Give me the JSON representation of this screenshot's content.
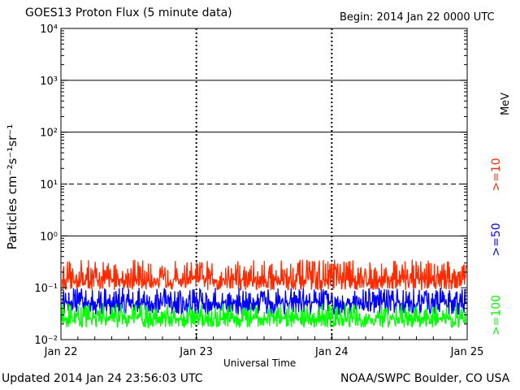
{
  "header": {
    "title": "GOES13 Proton Flux (5 minute data)",
    "begin": "Begin: 2014 Jan 22 0000 UTC"
  },
  "footer": {
    "updated": "Updated 2014 Jan 24 23:56:03 UTC",
    "credit": "NOAA/SWPC Boulder, CO USA"
  },
  "chart_data": {
    "type": "line",
    "title": "GOES13 Proton Flux (5 minute data)",
    "xlabel": "Universal Time",
    "ylabel": "Particles cm⁻²s⁻¹sr⁻¹",
    "y_scale": "log",
    "ylim": [
      0.01,
      10000
    ],
    "y_ticks": [
      {
        "value": 0.01,
        "label": "10⁻²"
      },
      {
        "value": 0.1,
        "label": "10⁻¹"
      },
      {
        "value": 1,
        "label": "10⁰"
      },
      {
        "value": 10,
        "label": "10¹"
      },
      {
        "value": 100,
        "label": "10²"
      },
      {
        "value": 1000,
        "label": "10³"
      },
      {
        "value": 10000,
        "label": "10⁴"
      }
    ],
    "x_range": [
      "2014-01-22",
      "2014-01-25"
    ],
    "x_ticks": [
      {
        "value": "2014-01-22",
        "label": "Jan 22"
      },
      {
        "value": "2014-01-23",
        "label": "Jan 23"
      },
      {
        "value": "2014-01-24",
        "label": "Jan 24"
      },
      {
        "value": "2014-01-25",
        "label": "Jan 25"
      }
    ],
    "thresholds": [
      {
        "value": 1000,
        "style": "solid"
      },
      {
        "value": 100,
        "style": "solid"
      },
      {
        "value": 10,
        "style": "dashed"
      },
      {
        "value": 1,
        "style": "solid"
      }
    ],
    "legend_placement": "right",
    "legend_unit": "MeV",
    "series": [
      {
        "name": ">=10",
        "color": "#ff2a00",
        "median": 0.14,
        "spread_low": 0.09,
        "spread_high": 0.35
      },
      {
        "name": ">=50",
        "color": "#0000ff",
        "median": 0.05,
        "spread_low": 0.03,
        "spread_high": 0.1
      },
      {
        "name": ">=100",
        "color": "#00ff00",
        "median": 0.025,
        "spread_low": 0.017,
        "spread_high": 0.05
      }
    ]
  }
}
